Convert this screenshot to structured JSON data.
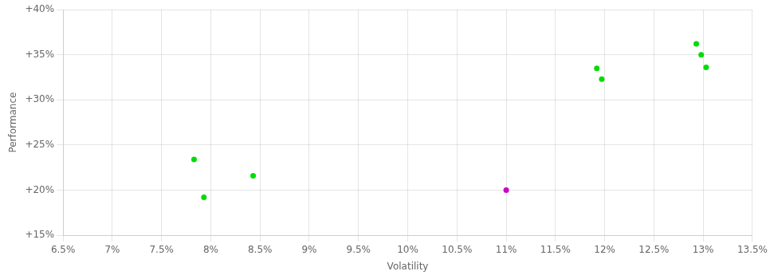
{
  "chart_data": {
    "type": "scatter",
    "xlabel": "Volatility",
    "ylabel": "Performance",
    "x": [
      0.0783,
      0.0793,
      0.0843,
      0.11,
      0.1192,
      0.1197,
      0.1293,
      0.1298,
      0.1303
    ],
    "values": [
      0.234,
      0.192,
      0.216,
      0.2,
      0.335,
      0.323,
      0.362,
      0.35,
      0.336
    ],
    "colors": [
      "#00dd00",
      "#00dd00",
      "#00dd00",
      "#cc00cc",
      "#00dd00",
      "#00dd00",
      "#00dd00",
      "#00dd00",
      "#00dd00"
    ],
    "xlim": [
      0.065,
      0.135
    ],
    "ylim": [
      0.15,
      0.4
    ],
    "xticks": [
      {
        "value": 0.065,
        "label": "6.5%"
      },
      {
        "value": 0.07,
        "label": "7%"
      },
      {
        "value": 0.075,
        "label": "7.5%"
      },
      {
        "value": 0.08,
        "label": "8%"
      },
      {
        "value": 0.085,
        "label": "8.5%"
      },
      {
        "value": 0.09,
        "label": "9%"
      },
      {
        "value": 0.095,
        "label": "9.5%"
      },
      {
        "value": 0.1,
        "label": "10%"
      },
      {
        "value": 0.105,
        "label": "10.5%"
      },
      {
        "value": 0.11,
        "label": "11%"
      },
      {
        "value": 0.115,
        "label": "11.5%"
      },
      {
        "value": 0.12,
        "label": "12%"
      },
      {
        "value": 0.125,
        "label": "12.5%"
      },
      {
        "value": 0.13,
        "label": "13%"
      },
      {
        "value": 0.135,
        "label": "13.5%"
      }
    ],
    "yticks": [
      {
        "value": 0.15,
        "label": "+15%"
      },
      {
        "value": 0.2,
        "label": "+20%"
      },
      {
        "value": 0.25,
        "label": "+25%"
      },
      {
        "value": 0.3,
        "label": "+30%"
      },
      {
        "value": 0.35,
        "label": "+35%"
      },
      {
        "value": 0.4,
        "label": "+40%"
      }
    ],
    "grid": true
  }
}
